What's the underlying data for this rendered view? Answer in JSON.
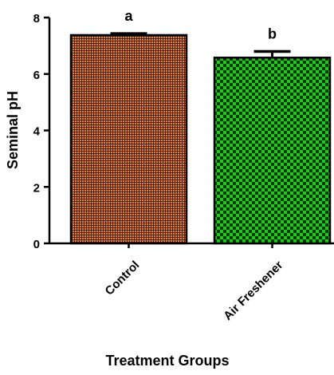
{
  "chart_data": {
    "type": "bar",
    "categories": [
      "Control",
      "Air Freshener"
    ],
    "values": [
      7.38,
      6.58
    ],
    "errors": [
      0.05,
      0.22
    ],
    "significance_labels": [
      "a",
      "b"
    ],
    "xlabel": "Treatment Groups",
    "ylabel": "Seminal pH",
    "ylim": [
      0,
      8
    ],
    "yticks": [
      "0",
      "2",
      "4",
      "6",
      "8"
    ],
    "bar_colors": [
      "#e8813a",
      "#1ec81e"
    ],
    "bar_patterns": [
      "fine-grid",
      "checkerboard"
    ],
    "grid": false,
    "legend": "none"
  }
}
